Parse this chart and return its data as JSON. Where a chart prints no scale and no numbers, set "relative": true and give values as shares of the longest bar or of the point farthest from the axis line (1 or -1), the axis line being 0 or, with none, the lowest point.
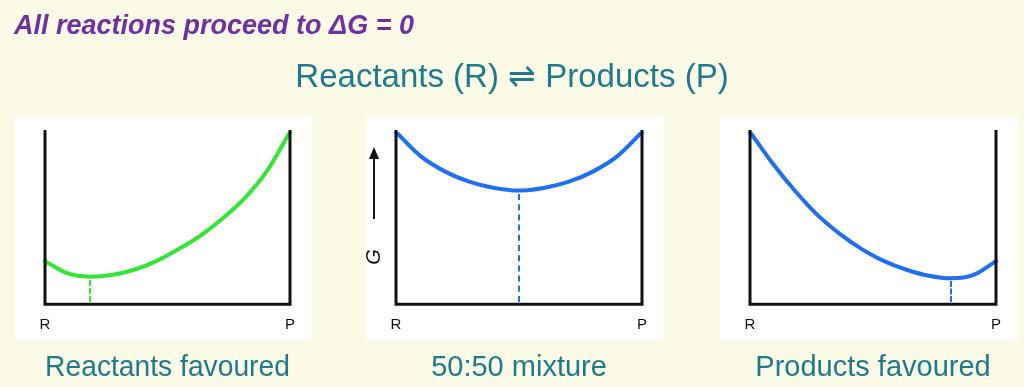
{
  "chart_data": [
    {
      "type": "other",
      "title": "All reactions proceed to ΔG = 0",
      "subtitle": "Reactants (R)  ⇌ Products (P)"
    },
    {
      "type": "line",
      "xlabel": "Reactants favoured",
      "relative": true,
      "marker": "none",
      "line_style": "solid",
      "legend": false,
      "tick_labels": "x",
      "categories": [
        "R",
        null,
        null,
        null,
        null,
        null,
        null,
        null,
        null,
        null,
        null,
        "P"
      ],
      "series": [
        {
          "color": "#33e633",
          "values": [
            0.25,
            0.18,
            0.16,
            0.17,
            0.2,
            0.25,
            0.32,
            0.4,
            0.5,
            0.62,
            0.78,
            1
          ]
        }
      ]
    },
    {
      "type": "line",
      "xlabel": "50:50 mixture",
      "ylabel": "G",
      "relative": true,
      "marker": "none",
      "line_style": "solid",
      "legend": false,
      "tick_labels": "x",
      "categories": [
        "R",
        null,
        null,
        null,
        null,
        null,
        null,
        null,
        null,
        null,
        "P"
      ],
      "series": [
        {
          "color": "#1f6ff0",
          "values": [
            1,
            0.86,
            0.77,
            0.71,
            0.675,
            0.66,
            0.675,
            0.71,
            0.77,
            0.86,
            1
          ]
        }
      ]
    },
    {
      "type": "line",
      "xlabel": "Products favoured",
      "relative": true,
      "marker": "none",
      "line_style": "solid",
      "legend": false,
      "tick_labels": "x",
      "categories": [
        "R",
        null,
        null,
        null,
        null,
        null,
        null,
        null,
        null,
        null,
        null,
        "P"
      ],
      "series": [
        {
          "color": "#1f6ff0",
          "values": [
            1,
            0.82,
            0.66,
            0.52,
            0.41,
            0.32,
            0.25,
            0.2,
            0.165,
            0.15,
            0.17,
            0.25
          ]
        }
      ]
    }
  ]
}
